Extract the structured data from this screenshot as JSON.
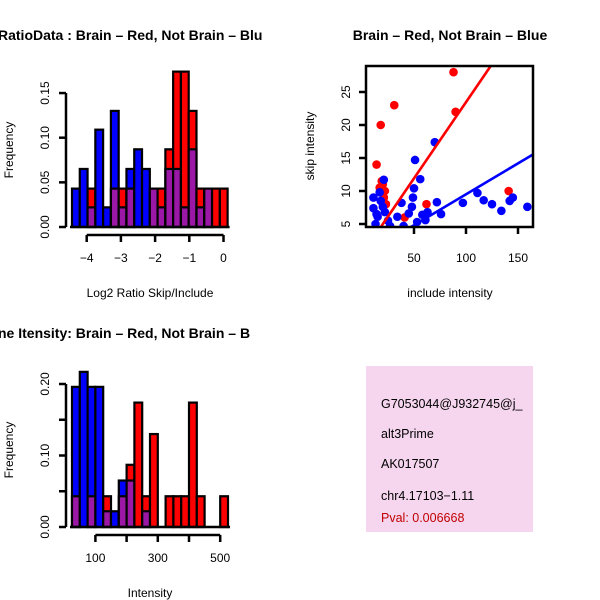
{
  "colors": {
    "red": "#ff0000",
    "blue": "#0000ff",
    "overlap": "#9b17a6",
    "panel": "#f6d6ef",
    "pval": "#c00000"
  },
  "chart_data": [
    {
      "type": "bar",
      "title": "RatioData : Brain – Red, Not Brain – Blu",
      "xlabel": "Log2 Ratio Skip/Include",
      "ylabel": "Frequency",
      "bin_start": -4.43,
      "bin_width": 0.2275,
      "red": [
        0,
        0,
        0.043,
        0,
        0,
        0.043,
        0.043,
        0.043,
        0,
        0,
        0.043,
        0.043,
        0.087,
        0.174,
        0.174,
        0.13,
        0.043,
        0.043,
        0.043,
        0.043
      ],
      "blue": [
        0.043,
        0.065,
        0.022,
        0.109,
        0.022,
        0.13,
        0.022,
        0.065,
        0.087,
        0.065,
        0.043,
        0.022,
        0.065,
        0.065,
        0.022,
        0.087,
        0.022,
        0.043,
        0,
        0
      ],
      "xticks": [
        -4,
        -3,
        -2,
        -1,
        0
      ],
      "xtick_labels": [
        "−4",
        "−3",
        "−2",
        "−1",
        "0"
      ],
      "yticks": [
        0,
        0.05,
        0.1,
        0.15
      ],
      "ytick_labels": [
        "0.00",
        "0.05",
        "0.10",
        "0.15"
      ]
    },
    {
      "type": "scatter",
      "title": "Brain – Red, Not Brain – Blue",
      "xlabel": "include intensity",
      "ylabel": "skip intensity",
      "xticks": [
        50,
        100,
        150
      ],
      "xtick_labels": [
        "50",
        "100",
        "150"
      ],
      "yticks": [
        5,
        10,
        15,
        20,
        25
      ],
      "ytick_labels": [
        "5",
        "10",
        "15",
        "20",
        "25"
      ],
      "red_points": [
        [
          88,
          28
        ],
        [
          31,
          23
        ],
        [
          18,
          20
        ],
        [
          14,
          14
        ],
        [
          90,
          22
        ],
        [
          141,
          10
        ],
        [
          62,
          8
        ],
        [
          41,
          6
        ],
        [
          20,
          11
        ],
        [
          22,
          10
        ],
        [
          21,
          9
        ],
        [
          23,
          8
        ],
        [
          19,
          11.5
        ],
        [
          17,
          10.5
        ]
      ],
      "blue_points": [
        [
          70,
          17.4
        ],
        [
          51,
          14.7
        ],
        [
          56,
          11.8
        ],
        [
          21,
          11.7
        ],
        [
          50,
          10.4
        ],
        [
          11,
          9
        ],
        [
          17,
          9.8
        ],
        [
          49,
          9
        ],
        [
          38,
          8.2
        ],
        [
          72,
          8.3
        ],
        [
          111,
          9.7
        ],
        [
          117,
          8.6
        ],
        [
          125,
          8
        ],
        [
          97,
          8.2
        ],
        [
          142,
          8.5
        ],
        [
          145,
          9
        ],
        [
          134,
          7
        ],
        [
          159,
          7.6
        ],
        [
          76,
          6.5
        ],
        [
          58,
          6.4
        ],
        [
          61,
          5.6
        ],
        [
          53,
          5.3
        ],
        [
          48,
          7.6
        ],
        [
          45,
          6.6
        ],
        [
          34,
          6.1
        ],
        [
          27,
          4.7
        ],
        [
          40,
          4.7
        ],
        [
          13,
          5
        ],
        [
          11,
          7.4
        ],
        [
          20,
          7.6
        ],
        [
          22,
          6.8
        ],
        [
          15,
          6.1
        ],
        [
          63,
          6.8
        ],
        [
          18,
          8.5
        ],
        [
          14,
          6.5
        ],
        [
          25,
          5.5
        ]
      ],
      "red_fit": [
        [
          14,
          3.6
        ],
        [
          124,
          29
        ]
      ],
      "blue_fit": [
        [
          37,
          3.6
        ],
        [
          164,
          15.5
        ]
      ]
    },
    {
      "type": "bar",
      "title": "ne Itensity: Brain – Red, Not Brain – B",
      "xlabel": "Intensity",
      "ylabel": "Frequency",
      "bin_start": 25,
      "bin_width": 25,
      "red": [
        0.043,
        0,
        0.043,
        0,
        0.043,
        0,
        0.043,
        0.087,
        0.174,
        0.043,
        0.13,
        0,
        0.043,
        0.043,
        0.043,
        0.174,
        0.043,
        0,
        0,
        0.043
      ],
      "blue": [
        0.196,
        0.217,
        0.196,
        0.196,
        0.022,
        0.022,
        0.065,
        0.065,
        0,
        0.022,
        0,
        0,
        0,
        0,
        0,
        0,
        0,
        0,
        0,
        0
      ],
      "xticks": [
        100,
        200,
        300,
        400,
        500
      ],
      "xtick_labels": [
        "100",
        "",
        "300",
        "",
        "500"
      ],
      "yticks": [
        0,
        0.05,
        0.1,
        0.15,
        0.2
      ],
      "ytick_labels": [
        "0.00",
        "",
        "0.10",
        "",
        "0.20"
      ]
    }
  ],
  "info_panel": {
    "id": "G7053044@J932745@j_",
    "event_type": "alt3Prime",
    "accession": "AK017507",
    "locus": "chr4.17103−1.11",
    "pval": "Pval: 0.006668"
  }
}
